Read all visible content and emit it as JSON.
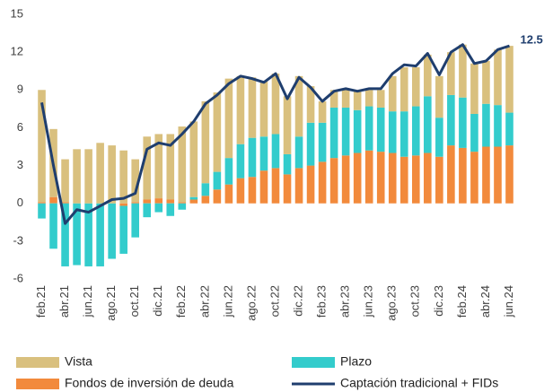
{
  "chart_data": {
    "type": "bar",
    "categories": [
      "feb.21",
      null,
      "abr.21",
      null,
      "jun.21",
      null,
      "ago.21",
      null,
      "oct.21",
      null,
      "dic.21",
      null,
      "feb.22",
      null,
      "abr.22",
      null,
      "jun.22",
      null,
      "ago.22",
      null,
      "oct.22",
      null,
      "dic.22",
      null,
      "feb.23",
      null,
      "abr.23",
      null,
      "jun.23",
      null,
      "ago.23",
      null,
      "oct.23",
      null,
      "dic.23",
      null,
      "feb.24",
      null,
      "abr.24",
      null,
      "jun.24"
    ],
    "series": [
      {
        "name": "Fondos de inversión de deuda",
        "color": "#f28a3c",
        "values": [
          0.1,
          0.5,
          0.1,
          0.0,
          0.0,
          0.0,
          0.0,
          -0.2,
          0.1,
          0.3,
          0.4,
          0.3,
          0.1,
          0.3,
          0.6,
          1.1,
          1.5,
          2.0,
          2.1,
          2.6,
          2.8,
          2.3,
          2.8,
          3.0,
          3.3,
          3.6,
          3.8,
          4.0,
          4.2,
          4.1,
          4.0,
          3.7,
          3.8,
          4.0,
          3.7,
          4.6,
          4.4,
          4.1,
          4.5,
          4.5,
          4.6
        ]
      },
      {
        "name": "Plazo",
        "color": "#33cccc",
        "values": [
          -1.2,
          -3.6,
          -5.0,
          -4.9,
          -5.0,
          -5.0,
          -4.4,
          -3.8,
          -2.7,
          -1.1,
          -0.7,
          -1.0,
          -0.5,
          0.2,
          1.0,
          1.4,
          2.1,
          2.7,
          3.1,
          2.7,
          2.7,
          1.6,
          2.5,
          3.4,
          3.1,
          4.0,
          3.8,
          3.4,
          3.5,
          3.5,
          3.3,
          3.6,
          3.9,
          4.5,
          3.1,
          4.0,
          4.0,
          3.0,
          3.4,
          3.3,
          2.6
        ]
      },
      {
        "name": "Vista",
        "color": "#d9c07e",
        "values": [
          8.9,
          5.4,
          3.4,
          4.3,
          4.3,
          4.8,
          4.6,
          4.2,
          3.4,
          5.0,
          5.1,
          5.2,
          6.0,
          6.0,
          6.5,
          6.3,
          6.3,
          5.4,
          4.8,
          4.4,
          4.8,
          4.6,
          4.8,
          2.9,
          1.7,
          1.4,
          1.5,
          1.5,
          1.3,
          1.4,
          2.8,
          3.5,
          3.1,
          3.3,
          3.3,
          3.4,
          4.2,
          4.0,
          3.4,
          4.4,
          5.3
        ]
      },
      {
        "name": "Captación tradicional + FIDs",
        "color": "#1f3e6e",
        "type": "line",
        "values": [
          8.0,
          3.0,
          -1.6,
          -0.5,
          -0.7,
          -0.2,
          0.3,
          0.4,
          0.8,
          4.3,
          4.8,
          4.6,
          5.5,
          6.5,
          7.9,
          8.6,
          9.5,
          10.1,
          9.9,
          9.6,
          10.3,
          8.3,
          10.0,
          9.2,
          8.1,
          8.9,
          9.1,
          8.9,
          9.1,
          9.1,
          10.3,
          11.0,
          10.9,
          11.9,
          10.2,
          12.0,
          12.6,
          11.1,
          11.3,
          12.2,
          12.5
        ]
      }
    ],
    "ylim": [
      -6,
      15
    ],
    "yticks": [
      -6,
      -3,
      0,
      3,
      6,
      9,
      12,
      15
    ]
  }
}
